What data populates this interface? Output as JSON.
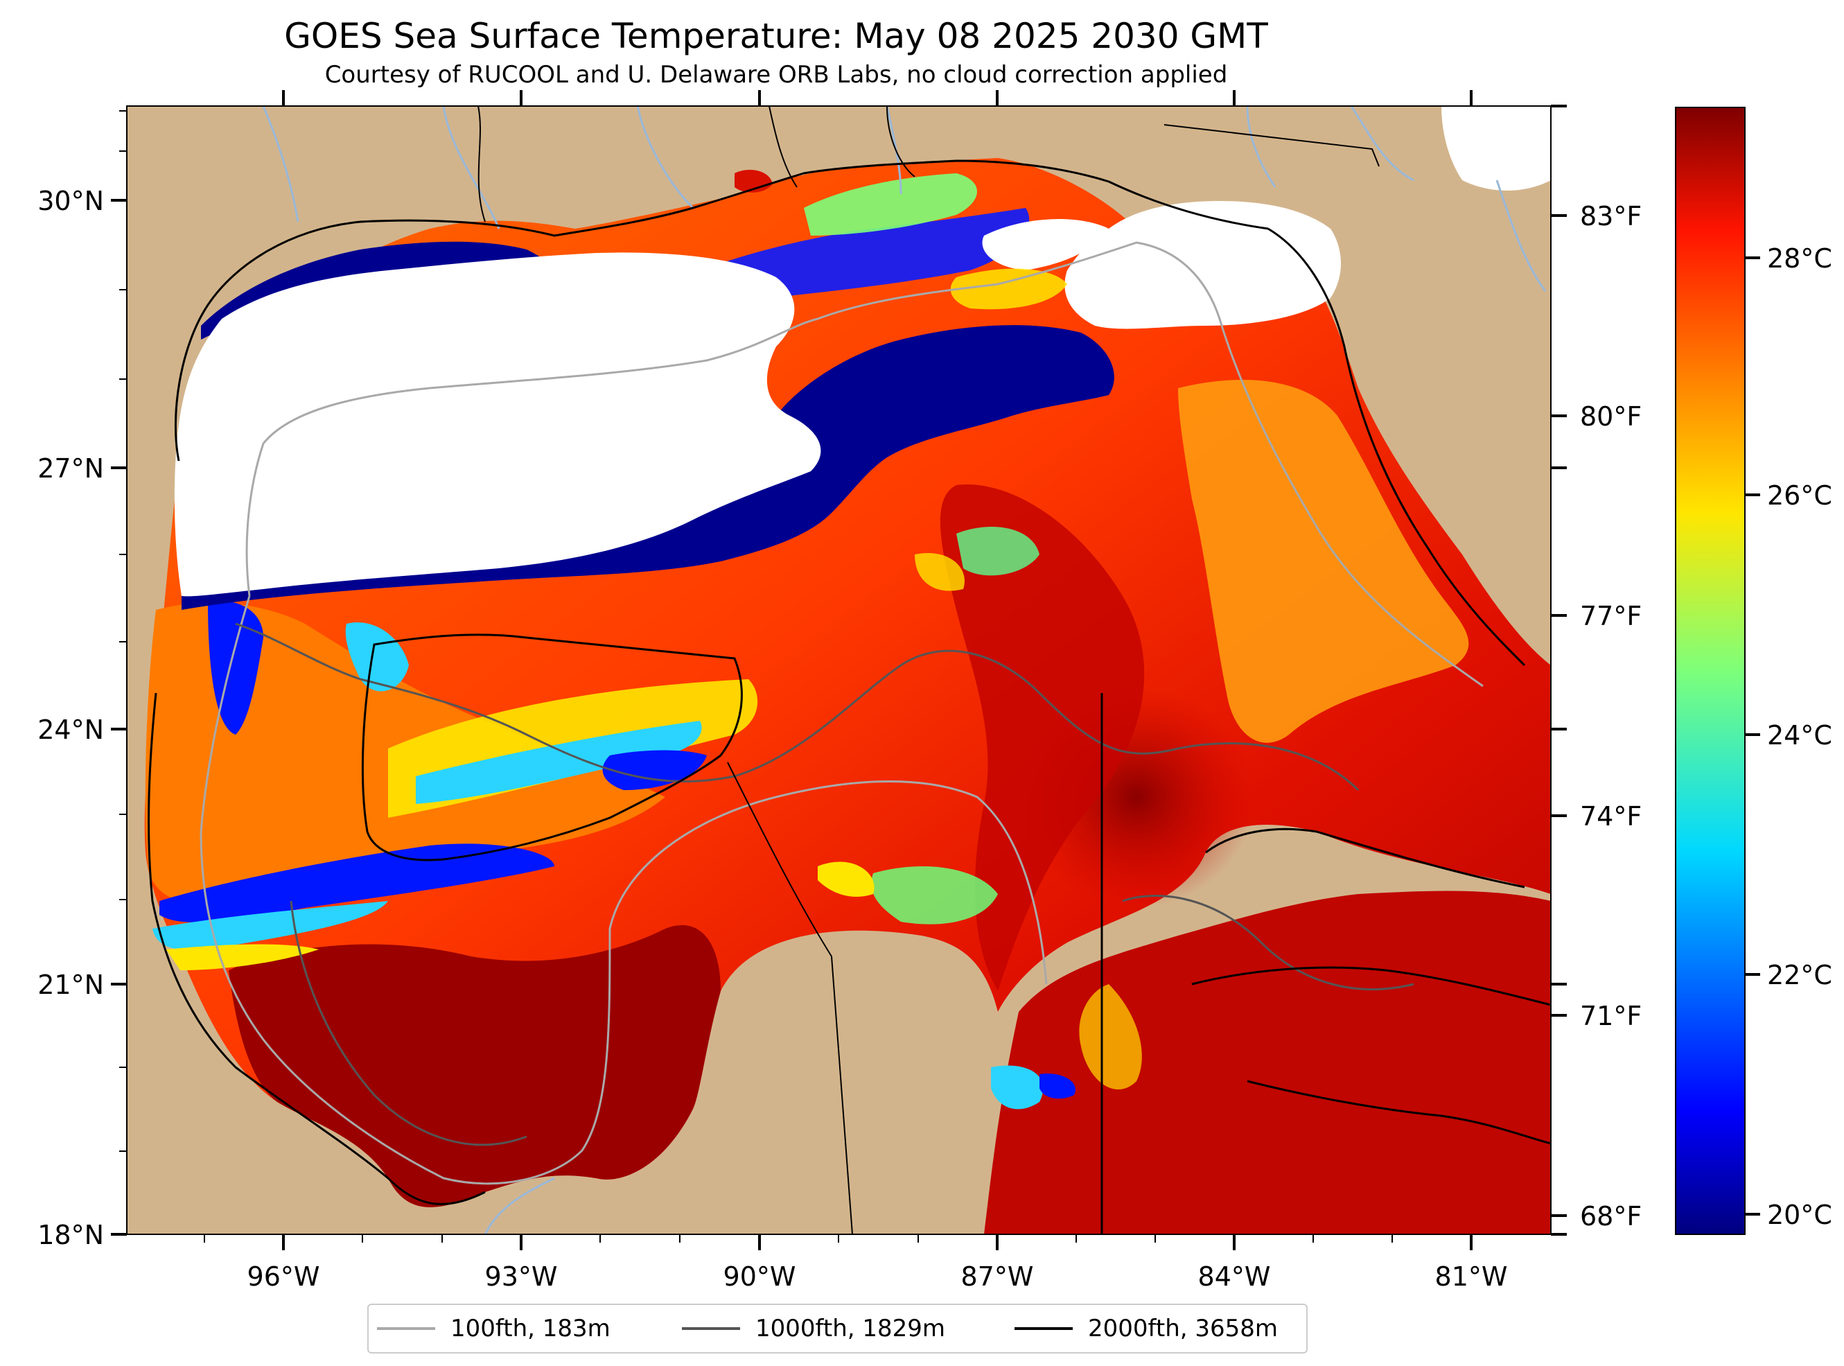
{
  "title": "GOES Sea Surface Temperature: May 08 2025 2030 GMT",
  "subtitle": "Courtesy of RUCOOL and U. Delaware ORB Labs, no cloud correction applied",
  "map": {
    "lat_labels": [
      "30°N",
      "27°N",
      "24°N",
      "21°N",
      "18°N"
    ],
    "lon_labels": [
      "96°W",
      "93°W",
      "90°W",
      "87°W",
      "84°W",
      "81°W"
    ],
    "land_color": "#d2b48c",
    "cloud_color": "#ffffff",
    "river_color": "#9ab8d8"
  },
  "fahrenheit_ticks": [
    "83°F",
    "80°F",
    "77°F",
    "74°F",
    "71°F",
    "68°F"
  ],
  "colorbar": {
    "colormap": "jet",
    "ticks": [
      "28°C",
      "26°C",
      "24°C",
      "22°C",
      "20°C"
    ]
  },
  "legend": [
    {
      "label": "100fth, 183m",
      "color": "#a9a9a9"
    },
    {
      "label": "1000fth, 1829m",
      "color": "#555555"
    },
    {
      "label": "2000fth, 3658m",
      "color": "#000000"
    }
  ]
}
